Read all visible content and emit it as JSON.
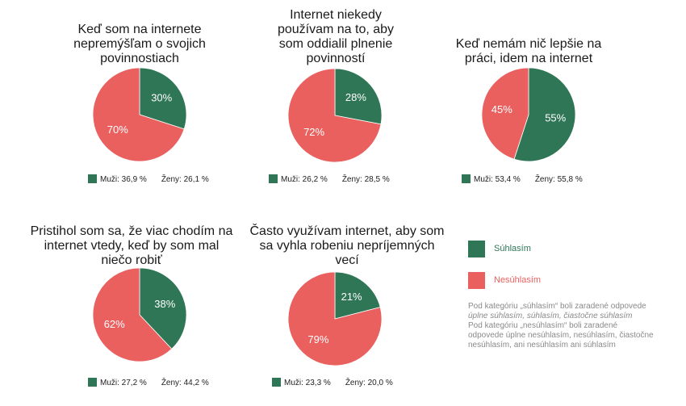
{
  "colors": {
    "agree": "#2f7656",
    "disagree": "#e9605f"
  },
  "chart_data": [
    {
      "type": "pie",
      "title": "Keď som na internete\nnepremýšľam o svojich\npovinnostiach",
      "slices": [
        {
          "label": "Súhlasím",
          "value": 30,
          "display": "30%"
        },
        {
          "label": "Nesúhlasím",
          "value": 70,
          "display": "70%"
        }
      ],
      "stats": {
        "men": "Muži: 36,9 %",
        "women": "Ženy: 26,1 %"
      }
    },
    {
      "type": "pie",
      "title": "Internet niekedy\npoužívam na to, aby\nsom oddialil plnenie\npovinností",
      "slices": [
        {
          "label": "Súhlasím",
          "value": 28,
          "display": "28%"
        },
        {
          "label": "Nesúhlasím",
          "value": 72,
          "display": "72%"
        }
      ],
      "stats": {
        "men": "Muži: 26,2 %",
        "women": "Ženy: 28,5 %"
      }
    },
    {
      "type": "pie",
      "title": "Keď nemám nič lepšie na\npráci, idem na internet",
      "slices": [
        {
          "label": "Súhlasím",
          "value": 55,
          "display": "55%"
        },
        {
          "label": "Nesúhlasím",
          "value": 45,
          "display": "45%"
        }
      ],
      "stats": {
        "men": "Muži: 53,4 %",
        "women": "Ženy: 55,8 %"
      }
    },
    {
      "type": "pie",
      "title": "Pristihol som sa, že viac chodím na\ninternet vtedy, keď by som mal\nniečo robiť",
      "slices": [
        {
          "label": "Súhlasím",
          "value": 38,
          "display": "38%"
        },
        {
          "label": "Nesúhlasím",
          "value": 62,
          "display": "62%"
        }
      ],
      "stats": {
        "men": "Muži: 27,2 %",
        "women": "Ženy: 44,2 %"
      }
    },
    {
      "type": "pie",
      "title": "Často využívam internet, aby som\nsa vyhla robeniu nepríjemných\nvecí",
      "slices": [
        {
          "label": "Súhlasím",
          "value": 21,
          "display": "21%"
        },
        {
          "label": "Nesúhlasím",
          "value": 79,
          "display": "79%"
        }
      ],
      "stats": {
        "men": "Muži: 23,3 %",
        "women": "Ženy: 20,0 %"
      }
    }
  ],
  "legend": {
    "agree": "Súhlasím",
    "disagree": "Nesúhlasím"
  },
  "notes": {
    "agree_pre": "Pod kategóriu „súhlasím“ boli zaradené odpovede ",
    "agree_italic": "úplne súhlasím, súhlasím, čiastočne súhlasím",
    "disagree": "Pod kategóriu „nesúhlasím“ boli zaradené odpovede úplne nesúhlasím, nesúhlasím, čiastočne nesúhlasím, ani nesúhlasím ani súhlasím"
  }
}
